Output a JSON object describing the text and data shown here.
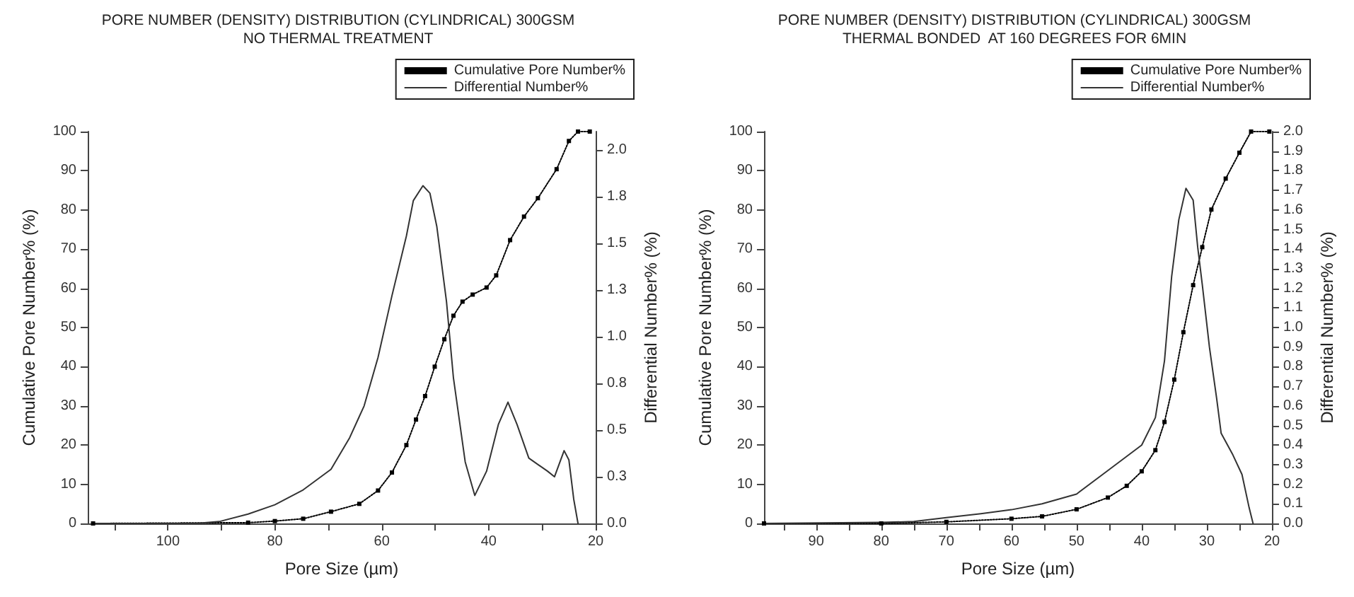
{
  "chart_data": [
    {
      "type": "line",
      "title": "PORE NUMBER (DENSITY) DISTRIBUTION (CYLINDRICAL) 300GSM",
      "subtitle": "NO THERMAL TREATMENT",
      "xlabel": "Pore Size (µm)",
      "ylabel": "Cumulative Pore Number% (%)",
      "y2label": "Differential Number% (%)",
      "legend": "top right",
      "grid": false,
      "xlim": [
        115,
        20
      ],
      "xticks": [
        {
          "value": 110,
          "label": null
        },
        100,
        {
          "value": 90,
          "label": null
        },
        80,
        {
          "value": 70,
          "label": null
        },
        60,
        {
          "value": 50,
          "label": null
        },
        40,
        {
          "value": 30,
          "label": null
        },
        20
      ],
      "ylim": [
        0,
        100
      ],
      "yticks": [
        0,
        10,
        20,
        30,
        40,
        50,
        60,
        70,
        80,
        90,
        100
      ],
      "y2lim": [
        0,
        2.1
      ],
      "y2ticks": [
        {
          "value": 0,
          "label": "0.0"
        },
        {
          "value": 0.25,
          "label": "0.3"
        },
        {
          "value": 0.5,
          "label": "0.5"
        },
        {
          "value": 0.75,
          "label": "0.8"
        },
        {
          "value": 1,
          "label": "1.0"
        },
        {
          "value": 1.25,
          "label": "1.3"
        },
        {
          "value": 1.5,
          "label": "1.5"
        },
        {
          "value": 1.75,
          "label": "1.8"
        },
        {
          "value": 2,
          "label": "2.0"
        }
      ],
      "series": [
        {
          "name": "Cumulative Pore Number%",
          "color": "#000000",
          "marker": "square",
          "line_style": "dotted",
          "x": [
            114,
            85,
            80,
            74.7,
            69.5,
            64.2,
            60.7,
            58.1,
            55.4,
            53.6,
            51.9,
            50.1,
            48.3,
            46.6,
            44.9,
            43,
            40.4,
            38.6,
            36,
            33.4,
            30.8,
            27.3,
            25,
            23.3,
            21.1
          ],
          "values": [
            0,
            0.2,
            0.6,
            1.2,
            3,
            5,
            8.4,
            13,
            20,
            26.5,
            32.5,
            40,
            47,
            53,
            56.6,
            58.4,
            60.2,
            63.3,
            72.3,
            78.3,
            83,
            90.4,
            97.6,
            100,
            100
          ]
        },
        {
          "name": "Differential Number%",
          "color": "#333333",
          "axis": "y2",
          "marker": "none",
          "line_style": "solid",
          "x": [
            114,
            94.7,
            90.4,
            85,
            80,
            74.7,
            69.5,
            66,
            63.3,
            60.7,
            58.1,
            55.4,
            54.1,
            52.3,
            51,
            49.7,
            47.9,
            46.6,
            44.4,
            42.6,
            40.4,
            38.2,
            36.4,
            34.7,
            32.5,
            29,
            27.7,
            25.9,
            25,
            24.1,
            23.3
          ],
          "values": [
            0,
            0,
            0.01,
            0.05,
            0.1,
            0.18,
            0.29,
            0.46,
            0.63,
            0.89,
            1.22,
            1.54,
            1.73,
            1.81,
            1.77,
            1.59,
            1.19,
            0.78,
            0.33,
            0.15,
            0.28,
            0.53,
            0.65,
            0.53,
            0.35,
            0.28,
            0.25,
            0.39,
            0.34,
            0.13,
            0
          ]
        }
      ]
    },
    {
      "type": "line",
      "title": "PORE NUMBER (DENSITY) DISTRIBUTION (CYLINDRICAL) 300GSM",
      "subtitle": "THERMAL BONDED  AT 160 DEGREES FOR 6MIN",
      "xlabel": "Pore Size (µm)",
      "ylabel": "Cumulative Pore Number% (%)",
      "y2label": "Differential Number% (%)",
      "legend": "top right",
      "grid": false,
      "xlim": [
        98,
        20
      ],
      "xticks": [
        {
          "value": 95,
          "label": null
        },
        90,
        {
          "value": 85,
          "label": null
        },
        80,
        {
          "value": 75,
          "label": null
        },
        70,
        {
          "value": 65,
          "label": null
        },
        60,
        {
          "value": 55,
          "label": null
        },
        50,
        {
          "value": 45,
          "label": null
        },
        40,
        {
          "value": 35,
          "label": null
        },
        30,
        {
          "value": 25,
          "label": null
        },
        20
      ],
      "ylim": [
        0,
        100
      ],
      "yticks": [
        0,
        10,
        20,
        30,
        40,
        50,
        60,
        70,
        80,
        90,
        100
      ],
      "y2lim": [
        0,
        2
      ],
      "y2ticks": [
        {
          "value": 0,
          "label": "0.0"
        },
        0.1,
        0.2,
        0.3,
        0.4,
        0.5,
        0.6,
        0.7,
        0.8,
        0.9,
        {
          "value": 1,
          "label": "1.0"
        },
        1.1,
        1.2,
        1.3,
        1.4,
        1.5,
        1.6,
        1.7,
        1.8,
        1.9,
        {
          "value": 2,
          "label": "2.0"
        }
      ],
      "series": [
        {
          "name": "Cumulative Pore Number%",
          "color": "#000000",
          "marker": "square",
          "line_style": "dotted",
          "x": [
            98,
            80,
            70,
            60,
            55.3,
            50,
            45.2,
            42.3,
            40,
            37.9,
            36.5,
            35,
            33.6,
            32.1,
            30.7,
            29.3,
            27.1,
            25,
            23.2,
            20.4
          ],
          "values": [
            0,
            0,
            0.4,
            1.2,
            1.8,
            3.6,
            6.6,
            9.6,
            13.3,
            18.7,
            25.9,
            36.7,
            48.8,
            60.8,
            70.5,
            80.1,
            88,
            94.6,
            100,
            100
          ]
        },
        {
          "name": "Differential Number%",
          "color": "#333333",
          "axis": "y2",
          "marker": "none",
          "line_style": "solid",
          "x": [
            98,
            80,
            75,
            70,
            64.7,
            60,
            55.3,
            50,
            45.2,
            40,
            37.9,
            36.5,
            35.4,
            34.3,
            33.2,
            32.1,
            31.4,
            30.7,
            29.6,
            28.5,
            27.8,
            26,
            24.6,
            23.5,
            22.9
          ],
          "values": [
            0,
            0.005,
            0.01,
            0.03,
            0.05,
            0.07,
            0.1,
            0.15,
            0.27,
            0.4,
            0.54,
            0.83,
            1.26,
            1.55,
            1.71,
            1.65,
            1.41,
            1.22,
            0.9,
            0.64,
            0.46,
            0.35,
            0.25,
            0.08,
            0
          ]
        }
      ]
    }
  ]
}
